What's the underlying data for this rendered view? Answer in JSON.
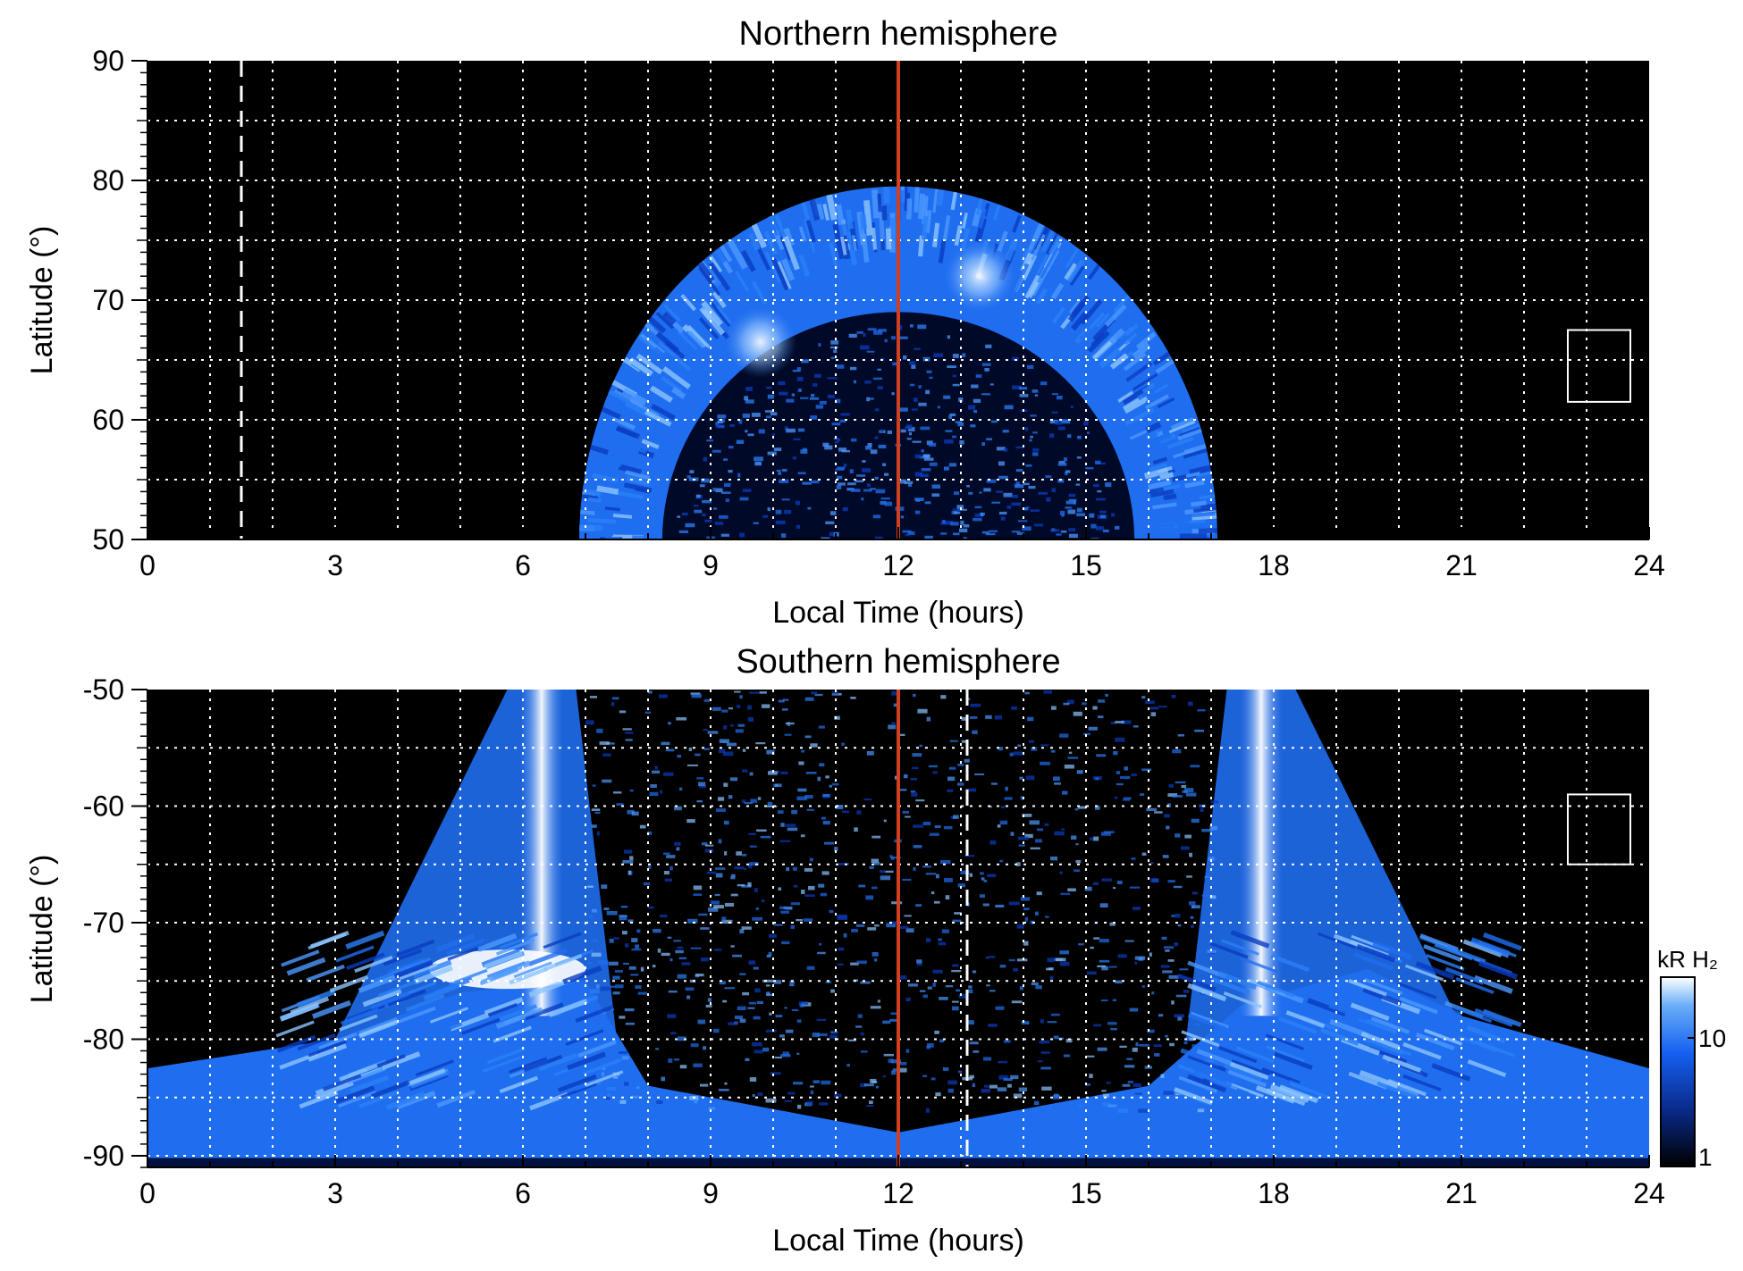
{
  "chart_data": [
    {
      "type": "heatmap",
      "title": "Northern hemisphere",
      "xlabel": "Local Time (hours)",
      "ylabel": "Latitude (°)",
      "xlim": [
        0,
        24
      ],
      "ylim": [
        50,
        90
      ],
      "x_ticks": [
        "0",
        "3",
        "6",
        "9",
        "12",
        "15",
        "18",
        "21",
        "24"
      ],
      "y_ticks": [
        "50",
        "60",
        "70",
        "80",
        "90"
      ],
      "grid": true,
      "noon_line_hours": 12,
      "dashed_marker_hours": 1.5,
      "oval": {
        "equatorward_edge_lat": 50,
        "poleward_tip_lat": 79.5,
        "inner_hole_top_lat": 69,
        "start_hours": 7.0,
        "end_hours": 17.2,
        "bright_spots_hours": [
          9.8,
          13.3
        ]
      },
      "box_marker": {
        "lt_range": [
          22.7,
          23.7
        ],
        "lat_range": [
          61.5,
          67.5
        ]
      }
    },
    {
      "type": "heatmap",
      "title": "Southern hemisphere",
      "xlabel": "Local Time (hours)",
      "ylabel": "Latitude (°)",
      "xlim": [
        0,
        24
      ],
      "ylim": [
        -91,
        -50
      ],
      "x_ticks": [
        "0",
        "3",
        "6",
        "9",
        "12",
        "15",
        "18",
        "21",
        "24"
      ],
      "y_ticks": [
        "-50",
        "-60",
        "-70",
        "-80",
        "-90"
      ],
      "grid": true,
      "noon_line_hours": 12,
      "dashed_marker_hours": 13.1,
      "bright_bands_hours": [
        6.3,
        17.8
      ],
      "bright_patch": {
        "lt_range": [
          4.5,
          7.0
        ],
        "lat": -74
      },
      "box_marker": {
        "lt_range": [
          22.7,
          23.7
        ],
        "lat_range": [
          -65,
          -59
        ]
      }
    }
  ],
  "colorbar": {
    "label": "kR H₂",
    "scale": "log",
    "range": [
      1,
      30
    ],
    "tick_labels": [
      "10",
      "1"
    ],
    "colors": [
      "#000000",
      "#0a2a8a",
      "#1560f0",
      "#6aaef8",
      "#ffffff"
    ]
  },
  "colors": {
    "background": "#000000",
    "noon_line": "#d04020",
    "grid": "#ffffff",
    "aurora_dim": "#0a3cc0",
    "aurora_mid": "#1f6ef0",
    "aurora_bright": "#8cc4ff"
  }
}
